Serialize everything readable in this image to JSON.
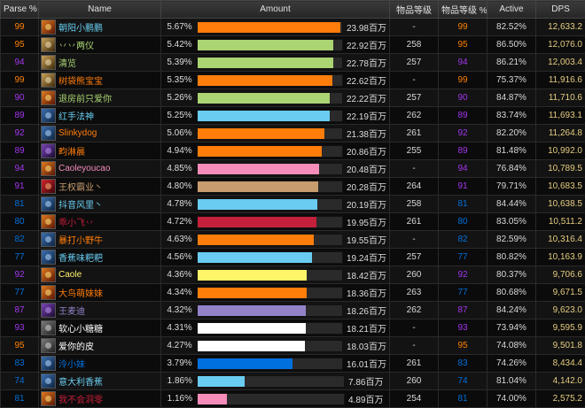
{
  "headers": [
    "Parse %",
    "Name",
    "Amount",
    "物品等级",
    "物品等级 %",
    "Active",
    "DPS"
  ],
  "colors": {
    "purple": "#a335ee",
    "orange": "#ff8000",
    "blue": "#0070dd",
    "mage": "#69ccf0",
    "hunter": "#abd473",
    "druid": "#ff7d0a",
    "paladin": "#f58cba",
    "warrior": "#c79c6e",
    "shaman": "#0070de",
    "dk": "#c41f3b",
    "rogue": "#fff569",
    "warlock": "#9482c9",
    "priest": "#ffffff",
    "monk": "#00ff96"
  },
  "rows": [
    {
      "parse": "99",
      "parse_color": "#ff8000",
      "icon": "fire",
      "icon_name": "fire-mage-spec-icon",
      "name": "朝阳小鹏鹏",
      "name_color": "#69ccf0",
      "pct": "5.67%",
      "share": 0.9855,
      "bar_color": "#ff7d0a",
      "dmg": "23.98百万",
      "ilvl": "-",
      "ilvl_pct": "99",
      "ilvl_color": "#ff8000",
      "active": "82.52%",
      "dps": "12,633.2",
      "dps_color": "#e5cc80"
    },
    {
      "parse": "95",
      "parse_color": "#ff8000",
      "icon": "cat",
      "icon_name": "hunter-spec-icon",
      "name": "丷丷两仪",
      "name_color": "#abd473",
      "pct": "5.42%",
      "share": 0.942,
      "bar_color": "#abd473",
      "dmg": "22.92百万",
      "ilvl": "258",
      "ilvl_pct": "95",
      "ilvl_color": "#ff8000",
      "active": "86.50%",
      "dps": "12,076.0",
      "dps_color": "#e5cc80"
    },
    {
      "parse": "94",
      "parse_color": "#a335ee",
      "icon": "cat",
      "icon_name": "hunter-spec-icon",
      "name": "清览",
      "name_color": "#abd473",
      "pct": "5.39%",
      "share": 0.937,
      "bar_color": "#abd473",
      "dmg": "22.78百万",
      "ilvl": "257",
      "ilvl_pct": "94",
      "ilvl_color": "#a335ee",
      "active": "86.21%",
      "dps": "12,003.4",
      "dps_color": "#e5cc80"
    },
    {
      "parse": "99",
      "parse_color": "#ff8000",
      "icon": "cat",
      "icon_name": "feral-druid-spec-icon",
      "name": "树袋熊宝宝",
      "name_color": "#ff7d0a",
      "pct": "5.35%",
      "share": 0.93,
      "bar_color": "#ff7d0a",
      "dmg": "22.62百万",
      "ilvl": "-",
      "ilvl_pct": "99",
      "ilvl_color": "#ff8000",
      "active": "75.37%",
      "dps": "11,916.6",
      "dps_color": "#e5cc80"
    },
    {
      "parse": "90",
      "parse_color": "#a335ee",
      "icon": "fire",
      "icon_name": "hunter-spec-icon",
      "name": "退房前只爱你",
      "name_color": "#abd473",
      "pct": "5.26%",
      "share": 0.914,
      "bar_color": "#abd473",
      "dmg": "22.22百万",
      "ilvl": "257",
      "ilvl_pct": "90",
      "ilvl_color": "#a335ee",
      "active": "84.87%",
      "dps": "11,710.6",
      "dps_color": "#e5cc80"
    },
    {
      "parse": "89",
      "parse_color": "#a335ee",
      "icon": "blue",
      "icon_name": "mage-spec-icon",
      "name": "红手法神",
      "name_color": "#69ccf0",
      "pct": "5.25%",
      "share": 0.913,
      "bar_color": "#69ccf0",
      "dmg": "22.19百万",
      "ilvl": "262",
      "ilvl_pct": "89",
      "ilvl_color": "#a335ee",
      "active": "83.74%",
      "dps": "11,693.1",
      "dps_color": "#e5cc80"
    },
    {
      "parse": "92",
      "parse_color": "#a335ee",
      "icon": "blue",
      "icon_name": "druid-spec-icon",
      "name": "Slinkydog",
      "name_color": "#ff7d0a",
      "pct": "5.06%",
      "share": 0.88,
      "bar_color": "#ff7d0a",
      "dmg": "21.38百万",
      "ilvl": "261",
      "ilvl_pct": "92",
      "ilvl_color": "#a335ee",
      "active": "82.20%",
      "dps": "11,264.8",
      "dps_color": "#e5cc80"
    },
    {
      "parse": "89",
      "parse_color": "#a335ee",
      "icon": "dark",
      "icon_name": "druid-spec-icon",
      "name": "畇淋晨",
      "name_color": "#ff7d0a",
      "pct": "4.94%",
      "share": 0.859,
      "bar_color": "#ff7d0a",
      "dmg": "20.86百万",
      "ilvl": "255",
      "ilvl_pct": "89",
      "ilvl_color": "#a335ee",
      "active": "81.48%",
      "dps": "10,992.0",
      "dps_color": "#e5cc80"
    },
    {
      "parse": "94",
      "parse_color": "#a335ee",
      "icon": "fire",
      "icon_name": "paladin-spec-icon",
      "name": "Caoleyoucao",
      "name_color": "#f58cba",
      "pct": "4.85%",
      "share": 0.843,
      "bar_color": "#f58cba",
      "dmg": "20.48百万",
      "ilvl": "-",
      "ilvl_pct": "94",
      "ilvl_color": "#a335ee",
      "active": "76.84%",
      "dps": "10,789.5",
      "dps_color": "#e5cc80"
    },
    {
      "parse": "91",
      "parse_color": "#a335ee",
      "icon": "red",
      "icon_name": "warrior-spec-icon",
      "name": "王权霸业丶",
      "name_color": "#c79c6e",
      "pct": "4.80%",
      "share": 0.835,
      "bar_color": "#c79c6e",
      "dmg": "20.28百万",
      "ilvl": "264",
      "ilvl_pct": "91",
      "ilvl_color": "#a335ee",
      "active": "79.71%",
      "dps": "10,683.5",
      "dps_color": "#e5cc80"
    },
    {
      "parse": "81",
      "parse_color": "#0070dd",
      "icon": "blue",
      "icon_name": "mage-spec-icon",
      "name": "抖音风里丶",
      "name_color": "#69ccf0",
      "pct": "4.78%",
      "share": 0.831,
      "bar_color": "#69ccf0",
      "dmg": "20.19百万",
      "ilvl": "258",
      "ilvl_pct": "81",
      "ilvl_color": "#0070dd",
      "active": "84.44%",
      "dps": "10,638.5",
      "dps_color": "#e5cc80"
    },
    {
      "parse": "80",
      "parse_color": "#0070dd",
      "icon": "fire",
      "icon_name": "death-knight-spec-icon",
      "name": "乖小飞丷",
      "name_color": "#c41f3b",
      "pct": "4.72%",
      "share": 0.82,
      "bar_color": "#c41f3b",
      "dmg": "19.95百万",
      "ilvl": "261",
      "ilvl_pct": "80",
      "ilvl_color": "#0070dd",
      "active": "83.05%",
      "dps": "10,511.2",
      "dps_color": "#e5cc80"
    },
    {
      "parse": "82",
      "parse_color": "#0070dd",
      "icon": "blue",
      "icon_name": "druid-spec-icon",
      "name": "暴打小野牛",
      "name_color": "#ff7d0a",
      "pct": "4.63%",
      "share": 0.805,
      "bar_color": "#ff7d0a",
      "dmg": "19.55百万",
      "ilvl": "-",
      "ilvl_pct": "82",
      "ilvl_color": "#0070dd",
      "active": "82.59%",
      "dps": "10,316.4",
      "dps_color": "#e5cc80"
    },
    {
      "parse": "77",
      "parse_color": "#0070dd",
      "icon": "blue",
      "icon_name": "mage-spec-icon",
      "name": "香蕉味粑粑",
      "name_color": "#69ccf0",
      "pct": "4.56%",
      "share": 0.793,
      "bar_color": "#69ccf0",
      "dmg": "19.24百万",
      "ilvl": "257",
      "ilvl_pct": "77",
      "ilvl_color": "#0070dd",
      "active": "80.82%",
      "dps": "10,163.9",
      "dps_color": "#e5cc80"
    },
    {
      "parse": "92",
      "parse_color": "#a335ee",
      "icon": "fire",
      "icon_name": "rogue-spec-icon",
      "name": "Caole",
      "name_color": "#fff569",
      "pct": "4.36%",
      "share": 0.758,
      "bar_color": "#fff569",
      "dmg": "18.42百万",
      "ilvl": "260",
      "ilvl_pct": "92",
      "ilvl_color": "#a335ee",
      "active": "80.37%",
      "dps": "9,706.6",
      "dps_color": "#e5cc80"
    },
    {
      "parse": "77",
      "parse_color": "#0070dd",
      "icon": "fire",
      "icon_name": "druid-spec-icon",
      "name": "大鸟萌妹妹",
      "name_color": "#ff7d0a",
      "pct": "4.34%",
      "share": 0.755,
      "bar_color": "#ff7d0a",
      "dmg": "18.36百万",
      "ilvl": "263",
      "ilvl_pct": "77",
      "ilvl_color": "#0070dd",
      "active": "80.68%",
      "dps": "9,671.5",
      "dps_color": "#e5cc80"
    },
    {
      "parse": "87",
      "parse_color": "#a335ee",
      "icon": "dark",
      "icon_name": "warlock-spec-icon",
      "name": "王麦迪",
      "name_color": "#9482c9",
      "pct": "4.32%",
      "share": 0.751,
      "bar_color": "#9482c9",
      "dmg": "18.26百万",
      "ilvl": "262",
      "ilvl_pct": "87",
      "ilvl_color": "#a335ee",
      "active": "84.24%",
      "dps": "9,623.0",
      "dps_color": "#e5cc80"
    },
    {
      "parse": "93",
      "parse_color": "#a335ee",
      "icon": "grey",
      "icon_name": "priest-spec-icon",
      "name": "软心小糖糖",
      "name_color": "#ffffff",
      "pct": "4.31%",
      "share": 0.75,
      "bar_color": "#ffffff",
      "dmg": "18.21百万",
      "ilvl": "-",
      "ilvl_pct": "93",
      "ilvl_color": "#a335ee",
      "active": "73.94%",
      "dps": "9,595.9",
      "dps_color": "#e5cc80"
    },
    {
      "parse": "95",
      "parse_color": "#ff8000",
      "icon": "grey",
      "icon_name": "priest-spec-icon",
      "name": "爱你的皮",
      "name_color": "#ffffff",
      "pct": "4.27%",
      "share": 0.743,
      "bar_color": "#ffffff",
      "dmg": "18.03百万",
      "ilvl": "-",
      "ilvl_pct": "95",
      "ilvl_color": "#ff8000",
      "active": "74.08%",
      "dps": "9,501.8",
      "dps_color": "#e5cc80"
    },
    {
      "parse": "83",
      "parse_color": "#0070dd",
      "icon": "blue",
      "icon_name": "shaman-spec-icon",
      "name": "泠小妹",
      "name_color": "#0070de",
      "pct": "3.79%",
      "share": 0.659,
      "bar_color": "#0070de",
      "dmg": "16.01百万",
      "ilvl": "261",
      "ilvl_pct": "83",
      "ilvl_color": "#0070dd",
      "active": "74.26%",
      "dps": "8,434.4",
      "dps_color": "#e5cc80"
    },
    {
      "parse": "74",
      "parse_color": "#0070dd",
      "icon": "blue",
      "icon_name": "mage-spec-icon",
      "name": "意大利香蕉",
      "name_color": "#69ccf0",
      "pct": "1.86%",
      "share": 0.323,
      "bar_color": "#69ccf0",
      "dmg": "7.86百万",
      "ilvl": "260",
      "ilvl_pct": "74",
      "ilvl_color": "#0070dd",
      "active": "81.04%",
      "dps": "4,142.0",
      "dps_color": "#e5cc80"
    },
    {
      "parse": "81",
      "parse_color": "#0070dd",
      "icon": "fire",
      "icon_name": "paladin-spec-icon",
      "name": "我不会洞零",
      "name_color": "#c41f3b",
      "pct": "1.16%",
      "share": 0.201,
      "bar_color": "#f58cba",
      "dmg": "4.89百万",
      "ilvl": "254",
      "ilvl_pct": "81",
      "ilvl_color": "#0070dd",
      "active": "74.00%",
      "dps": "2,575.2",
      "dps_color": "#e5cc80"
    }
  ]
}
